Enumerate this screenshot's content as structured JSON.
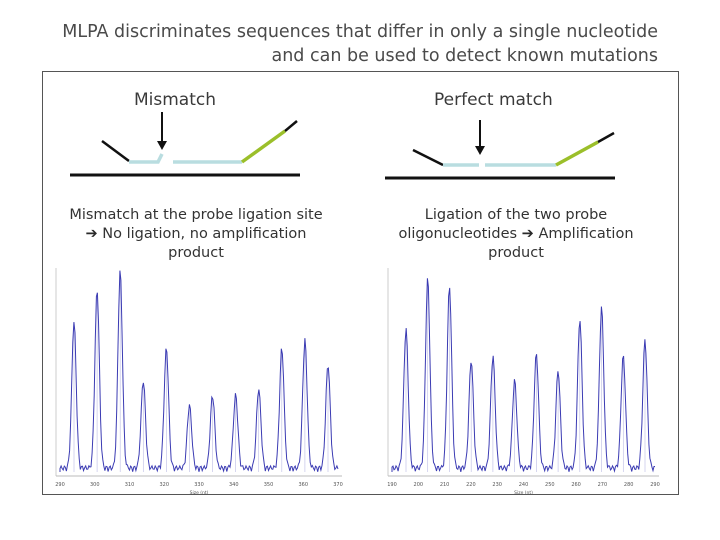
{
  "title": {
    "line1": "MLPA discriminates sequences that differ in only a single nucleotide",
    "line2": "and can be used to detect known mutations"
  },
  "panels": {
    "left": {
      "label": "Mismatch",
      "caption_line1": "Mismatch at the probe ligation site",
      "caption_line2_arrow": "➔",
      "caption_line2": "No ligation, no amplification",
      "caption_line3": "product"
    },
    "right": {
      "label": "Perfect match",
      "caption_line1": "Ligation of the two probe",
      "caption_line2": "oligonucleotides",
      "caption_line2_arrow": "➔",
      "caption_line2_tail": "Amplification",
      "caption_line3": "product"
    }
  },
  "electropherograms": {
    "left": {
      "x_ticks": [
        "290",
        "300",
        "310",
        "320",
        "330",
        "340",
        "350",
        "360",
        "370"
      ],
      "x_label": "Size (nt)",
      "peak_heights": [
        0.72,
        0.88,
        0.97,
        0.43,
        0.59,
        0.31,
        0.36,
        0.36,
        0.39,
        0.59,
        0.63,
        0.51
      ],
      "line_color": "#3b3bb3"
    },
    "right": {
      "x_ticks": [
        "190",
        "200",
        "210",
        "220",
        "230",
        "240",
        "250",
        "260",
        "270",
        "280",
        "290"
      ],
      "x_label": "Size (nt)",
      "peak_heights": [
        0.68,
        0.93,
        0.89,
        0.53,
        0.55,
        0.43,
        0.56,
        0.48,
        0.73,
        0.79,
        0.55,
        0.63
      ],
      "line_color": "#3b3bb3"
    }
  },
  "colors": {
    "probe_left_part": "#b9dde0",
    "probe_tail": "#9bbf2a",
    "dna_strand": "#111111",
    "arrow": "#111111"
  }
}
